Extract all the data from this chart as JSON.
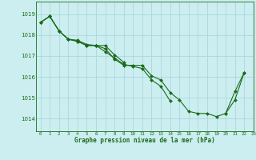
{
  "title": "Graphe pression niveau de la mer (hPa)",
  "background_color": "#cceef0",
  "grid_color": "#aad8dc",
  "line_color": "#1a6b1a",
  "marker_color": "#1a6b1a",
  "x_labels": [
    "0",
    "1",
    "2",
    "3",
    "4",
    "5",
    "6",
    "7",
    "8",
    "9",
    "10",
    "11",
    "12",
    "13",
    "14",
    "15",
    "16",
    "17",
    "18",
    "19",
    "20",
    "21",
    "22",
    "23"
  ],
  "ylim": [
    1013.4,
    1019.6
  ],
  "yticks": [
    1014,
    1015,
    1016,
    1017,
    1018,
    1019
  ],
  "series": [
    [
      1018.6,
      1018.9,
      1018.2,
      1017.8,
      1017.75,
      1017.55,
      1017.5,
      1017.35,
      1016.85,
      1016.55,
      1016.55,
      1016.55,
      1016.05,
      1015.85,
      1015.25,
      1014.9,
      1014.35,
      1014.25,
      1014.25,
      1014.1,
      1014.25,
      1014.9,
      1016.2,
      null
    ],
    [
      1018.6,
      1018.9,
      1018.2,
      1017.8,
      1017.7,
      1017.5,
      1017.5,
      1017.2,
      1016.9,
      1016.6,
      1016.5,
      1016.4,
      1015.85,
      1015.55,
      1014.85,
      null,
      null,
      null,
      null,
      null,
      null,
      null,
      null,
      null
    ],
    [
      1018.6,
      1018.9,
      1018.2,
      1017.8,
      1017.7,
      1017.5,
      1017.5,
      1017.5,
      1017.05,
      1016.7,
      null,
      null,
      null,
      null,
      null,
      null,
      null,
      null,
      null,
      null,
      null,
      null,
      null,
      null
    ],
    [
      null,
      null,
      null,
      null,
      null,
      null,
      null,
      null,
      null,
      null,
      null,
      null,
      null,
      null,
      null,
      null,
      null,
      null,
      null,
      null,
      1014.25,
      1015.3,
      1016.2,
      null
    ]
  ]
}
